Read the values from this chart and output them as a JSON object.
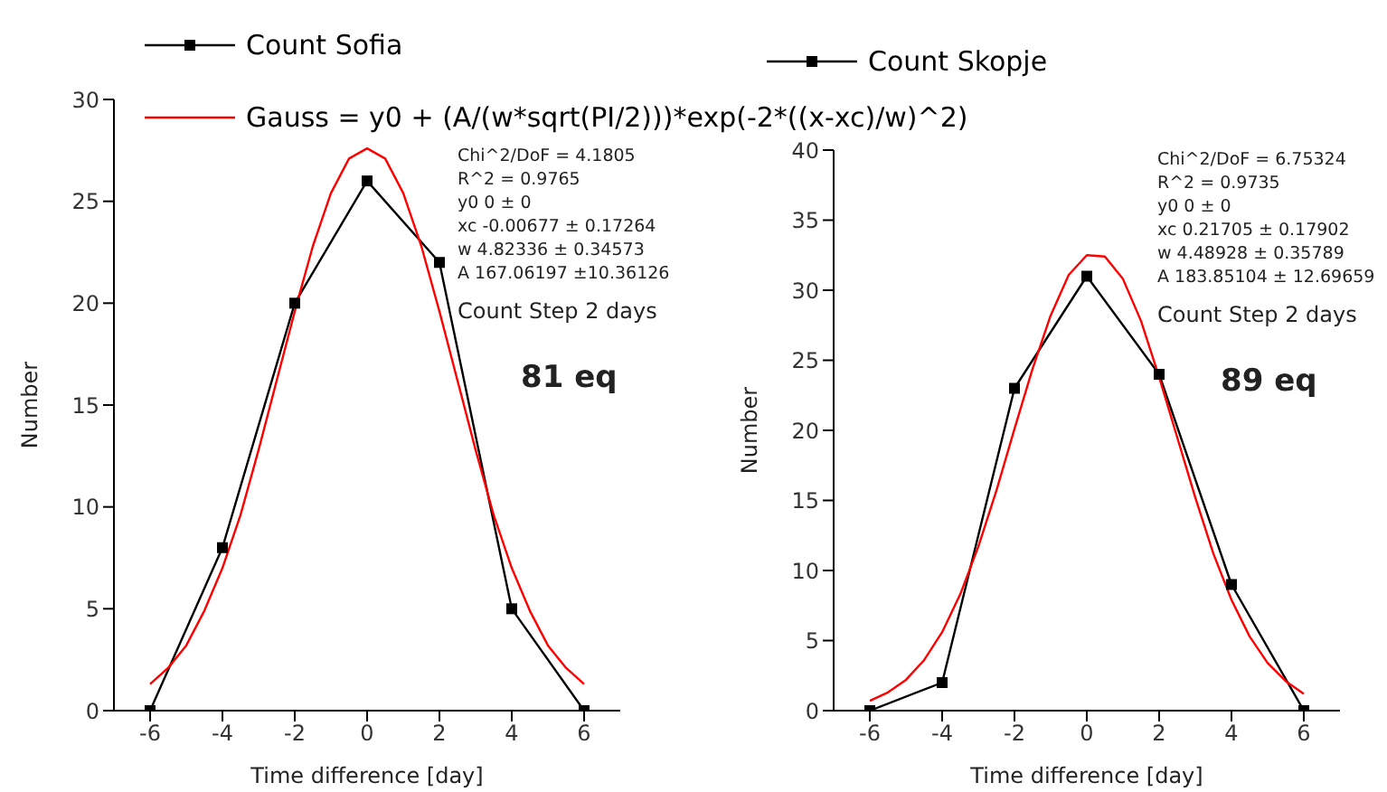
{
  "chart_data": [
    {
      "type": "line",
      "xlabel": "Time difference [day]",
      "ylabel": "Number",
      "xlim": [
        -7,
        7
      ],
      "xticks": [
        -6,
        -4,
        -2,
        0,
        2,
        4,
        6
      ],
      "ylim": [
        0,
        30
      ],
      "yticks": [
        0,
        5,
        10,
        15,
        20,
        25,
        30
      ],
      "legend": "top",
      "series": [
        {
          "name": "Count Sofia",
          "color": "#000000",
          "marker": "square",
          "x": [
            -6,
            -4,
            -2,
            0,
            2,
            4,
            6
          ],
          "values": [
            0,
            8,
            20,
            26,
            22,
            5,
            0
          ]
        },
        {
          "name": "Gauss = y0 + (A/(w*sqrt(PI/2)))*exp(-2*((x-xc)/w)^2)",
          "color": "#ff0000",
          "marker": "none",
          "x": [
            -6,
            -5.5,
            -5,
            -4.5,
            -4,
            -3.5,
            -3,
            -2.5,
            -2,
            -1.5,
            -1,
            -0.5,
            0,
            0.5,
            1,
            1.5,
            2,
            2.5,
            3,
            3.5,
            4,
            4.5,
            5,
            5.5,
            6
          ],
          "values": [
            1.3,
            2.1,
            3.2,
            4.9,
            7.0,
            9.6,
            12.8,
            16.2,
            19.6,
            22.8,
            25.4,
            27.1,
            27.6,
            27.1,
            25.4,
            22.8,
            19.6,
            16.2,
            12.8,
            9.6,
            7.0,
            4.9,
            3.2,
            2.1,
            1.3
          ]
        }
      ],
      "annotations": [
        "Chi^2/DoF = 4.1805",
        "R^2 = 0.9765",
        "y0 0 ± 0",
        "xc -0.00677 ± 0.17264",
        "w 4.82336 ± 0.34573",
        "A 167.06197 ±10.36126",
        "Count Step 2 days",
        "81 eq"
      ]
    },
    {
      "type": "line",
      "xlabel": "Time difference [day]",
      "ylabel": "Number",
      "xlim": [
        -7,
        7
      ],
      "xticks": [
        -6,
        -4,
        -2,
        0,
        2,
        4,
        6
      ],
      "ylim": [
        0,
        40
      ],
      "yticks": [
        0,
        5,
        10,
        15,
        20,
        25,
        30,
        35,
        40
      ],
      "legend": "top",
      "series": [
        {
          "name": "Count Skopje",
          "color": "#000000",
          "marker": "square",
          "x": [
            -6,
            -4,
            -2,
            0,
            2,
            4,
            6
          ],
          "values": [
            0,
            2,
            23,
            31,
            24,
            9,
            0
          ]
        },
        {
          "color": "#ff0000",
          "marker": "none",
          "x": [
            -6,
            -5.5,
            -5,
            -4.5,
            -4,
            -3.5,
            -3,
            -2.5,
            -2,
            -1.5,
            -1,
            -0.5,
            0,
            0.5,
            1,
            1.5,
            2,
            2.5,
            3,
            3.5,
            4,
            4.5,
            5,
            5.5,
            6
          ],
          "values": [
            0.7,
            1.3,
            2.2,
            3.6,
            5.6,
            8.3,
            11.7,
            15.7,
            20.1,
            24.4,
            28.2,
            31.1,
            32.5,
            32.4,
            30.8,
            27.8,
            23.8,
            19.5,
            15.2,
            11.2,
            7.9,
            5.3,
            3.4,
            2.1,
            1.2
          ]
        }
      ],
      "annotations": [
        "Chi^2/DoF = 6.75324",
        "R^2 = 0.9735",
        "y0 0 ± 0",
        "xc 0.21705 ± 0.17902",
        "w 4.48928 ± 0.35789",
        "A 183.85104 ± 12.69659",
        "Count Step 2 days",
        "89 eq"
      ]
    }
  ]
}
